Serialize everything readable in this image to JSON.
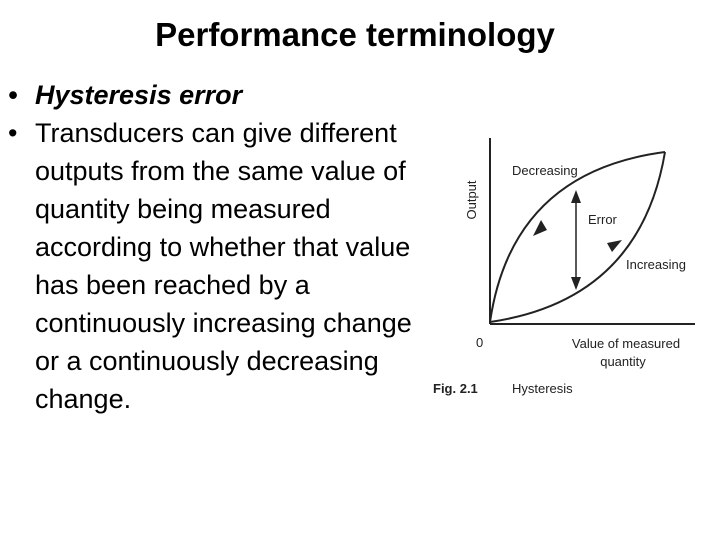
{
  "title": "Performance terminology",
  "bullets": [
    {
      "text": "Hysteresis error"
    },
    {
      "text": "Transducers can give different outputs from the same value of quantity being measured according to whether that value has been reached by a continuously increasing change or a continuously decreasing change."
    }
  ],
  "figure": {
    "y_axis_label": "Output",
    "decreasing_label": "Decreasing",
    "error_label": "Error",
    "increasing_label": "Increasing",
    "origin_label": "0",
    "x_axis_label_line1": "Value of measured",
    "x_axis_label_line2": "quantity",
    "caption_number": "Fig. 2.1",
    "caption_text": "Hysteresis"
  }
}
